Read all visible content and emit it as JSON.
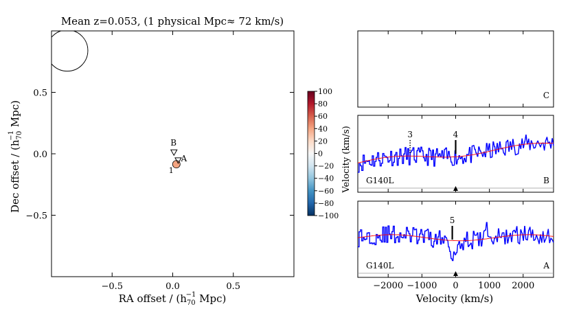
{
  "figure_title": "Mean z=0.053, (1 physical Mpc≈ 72 km/s)",
  "chart_data": [
    {
      "type": "scatter",
      "title": "Mean z=0.053, (1 physical Mpc≈ 72 km/s)",
      "xlabel_main": "RA offset / (h",
      "xlabel_sub": "70",
      "xlabel_sup": "−1",
      "xlabel_tail": " Mpc)",
      "ylabel_main": "Dec offset  / (h",
      "ylabel_sub": "70",
      "ylabel_sup": "−1",
      "ylabel_tail": " Mpc)",
      "xlim": [
        -1.0,
        1.0
      ],
      "ylim": [
        -1.0,
        1.0
      ],
      "xticks": [
        -0.5,
        0.0,
        0.5
      ],
      "xtick_labels": [
        "−0.5",
        "0.0",
        "0.5"
      ],
      "yticks": [
        -0.5,
        0.0,
        0.5
      ],
      "ytick_labels": [
        "−0.5",
        "0.0",
        "0.5"
      ],
      "circle": {
        "x": -0.87,
        "y": 0.84,
        "r": 0.17
      },
      "sightlines": [
        {
          "name": "B",
          "x": 0.01,
          "y": 0.01
        },
        {
          "name": "A",
          "x": 0.045,
          "y": -0.055
        }
      ],
      "galaxies": [
        {
          "label": "1",
          "x": 0.03,
          "y": -0.085,
          "velocity": 30,
          "color": "#f4a582"
        }
      ],
      "colorbar": {
        "min": -100,
        "max": 100,
        "ticks": [
          100,
          80,
          60,
          40,
          20,
          0,
          -20,
          -40,
          -60,
          -80,
          -100
        ],
        "tick_labels": [
          "100",
          "80",
          "60",
          "40",
          "20",
          "0",
          "−20",
          "−40",
          "−60",
          "−80",
          "−100"
        ],
        "colors": [
          "#67001f",
          "#b2182b",
          "#d6604d",
          "#f4a582",
          "#fddbc7",
          "#f7f7f7",
          "#d1e5f0",
          "#92c5de",
          "#4393c3",
          "#2166ac",
          "#053061"
        ]
      }
    },
    {
      "type": "line",
      "ylabel": "Velocity (km/s)",
      "xlabel": "Velocity (km/s)",
      "xlim": [
        -2900,
        2900
      ],
      "xticks": [
        -2000,
        -1000,
        0,
        1000,
        2000
      ],
      "xtick_labels": [
        "−2000",
        "−1000",
        "0",
        "1000",
        "2000"
      ],
      "panels": [
        {
          "id": "C",
          "label": "C",
          "grating": "",
          "has_spectrum": false,
          "marks": []
        },
        {
          "id": "B",
          "label": "B",
          "grating": "G140L",
          "has_spectrum": true,
          "seed": 11,
          "continuum": [
            0.38,
            0.62
          ],
          "noise": 0.12,
          "galaxy_marker": true,
          "marks": [
            {
              "label": "3",
              "velocity": -1350,
              "style": "dotted"
            },
            {
              "label": "4",
              "velocity": 0,
              "style": "solid"
            }
          ]
        },
        {
          "id": "A",
          "label": "A",
          "grating": "G140L",
          "has_spectrum": true,
          "seed": 29,
          "continuum": [
            0.52,
            0.52
          ],
          "noise": 0.12,
          "galaxy_marker": true,
          "marks": [
            {
              "label": "5",
              "velocity": -100,
              "style": "solid"
            }
          ]
        }
      ],
      "colors": {
        "data": "#0000ff",
        "model": "#ff0000",
        "zero": "#999999"
      }
    }
  ]
}
